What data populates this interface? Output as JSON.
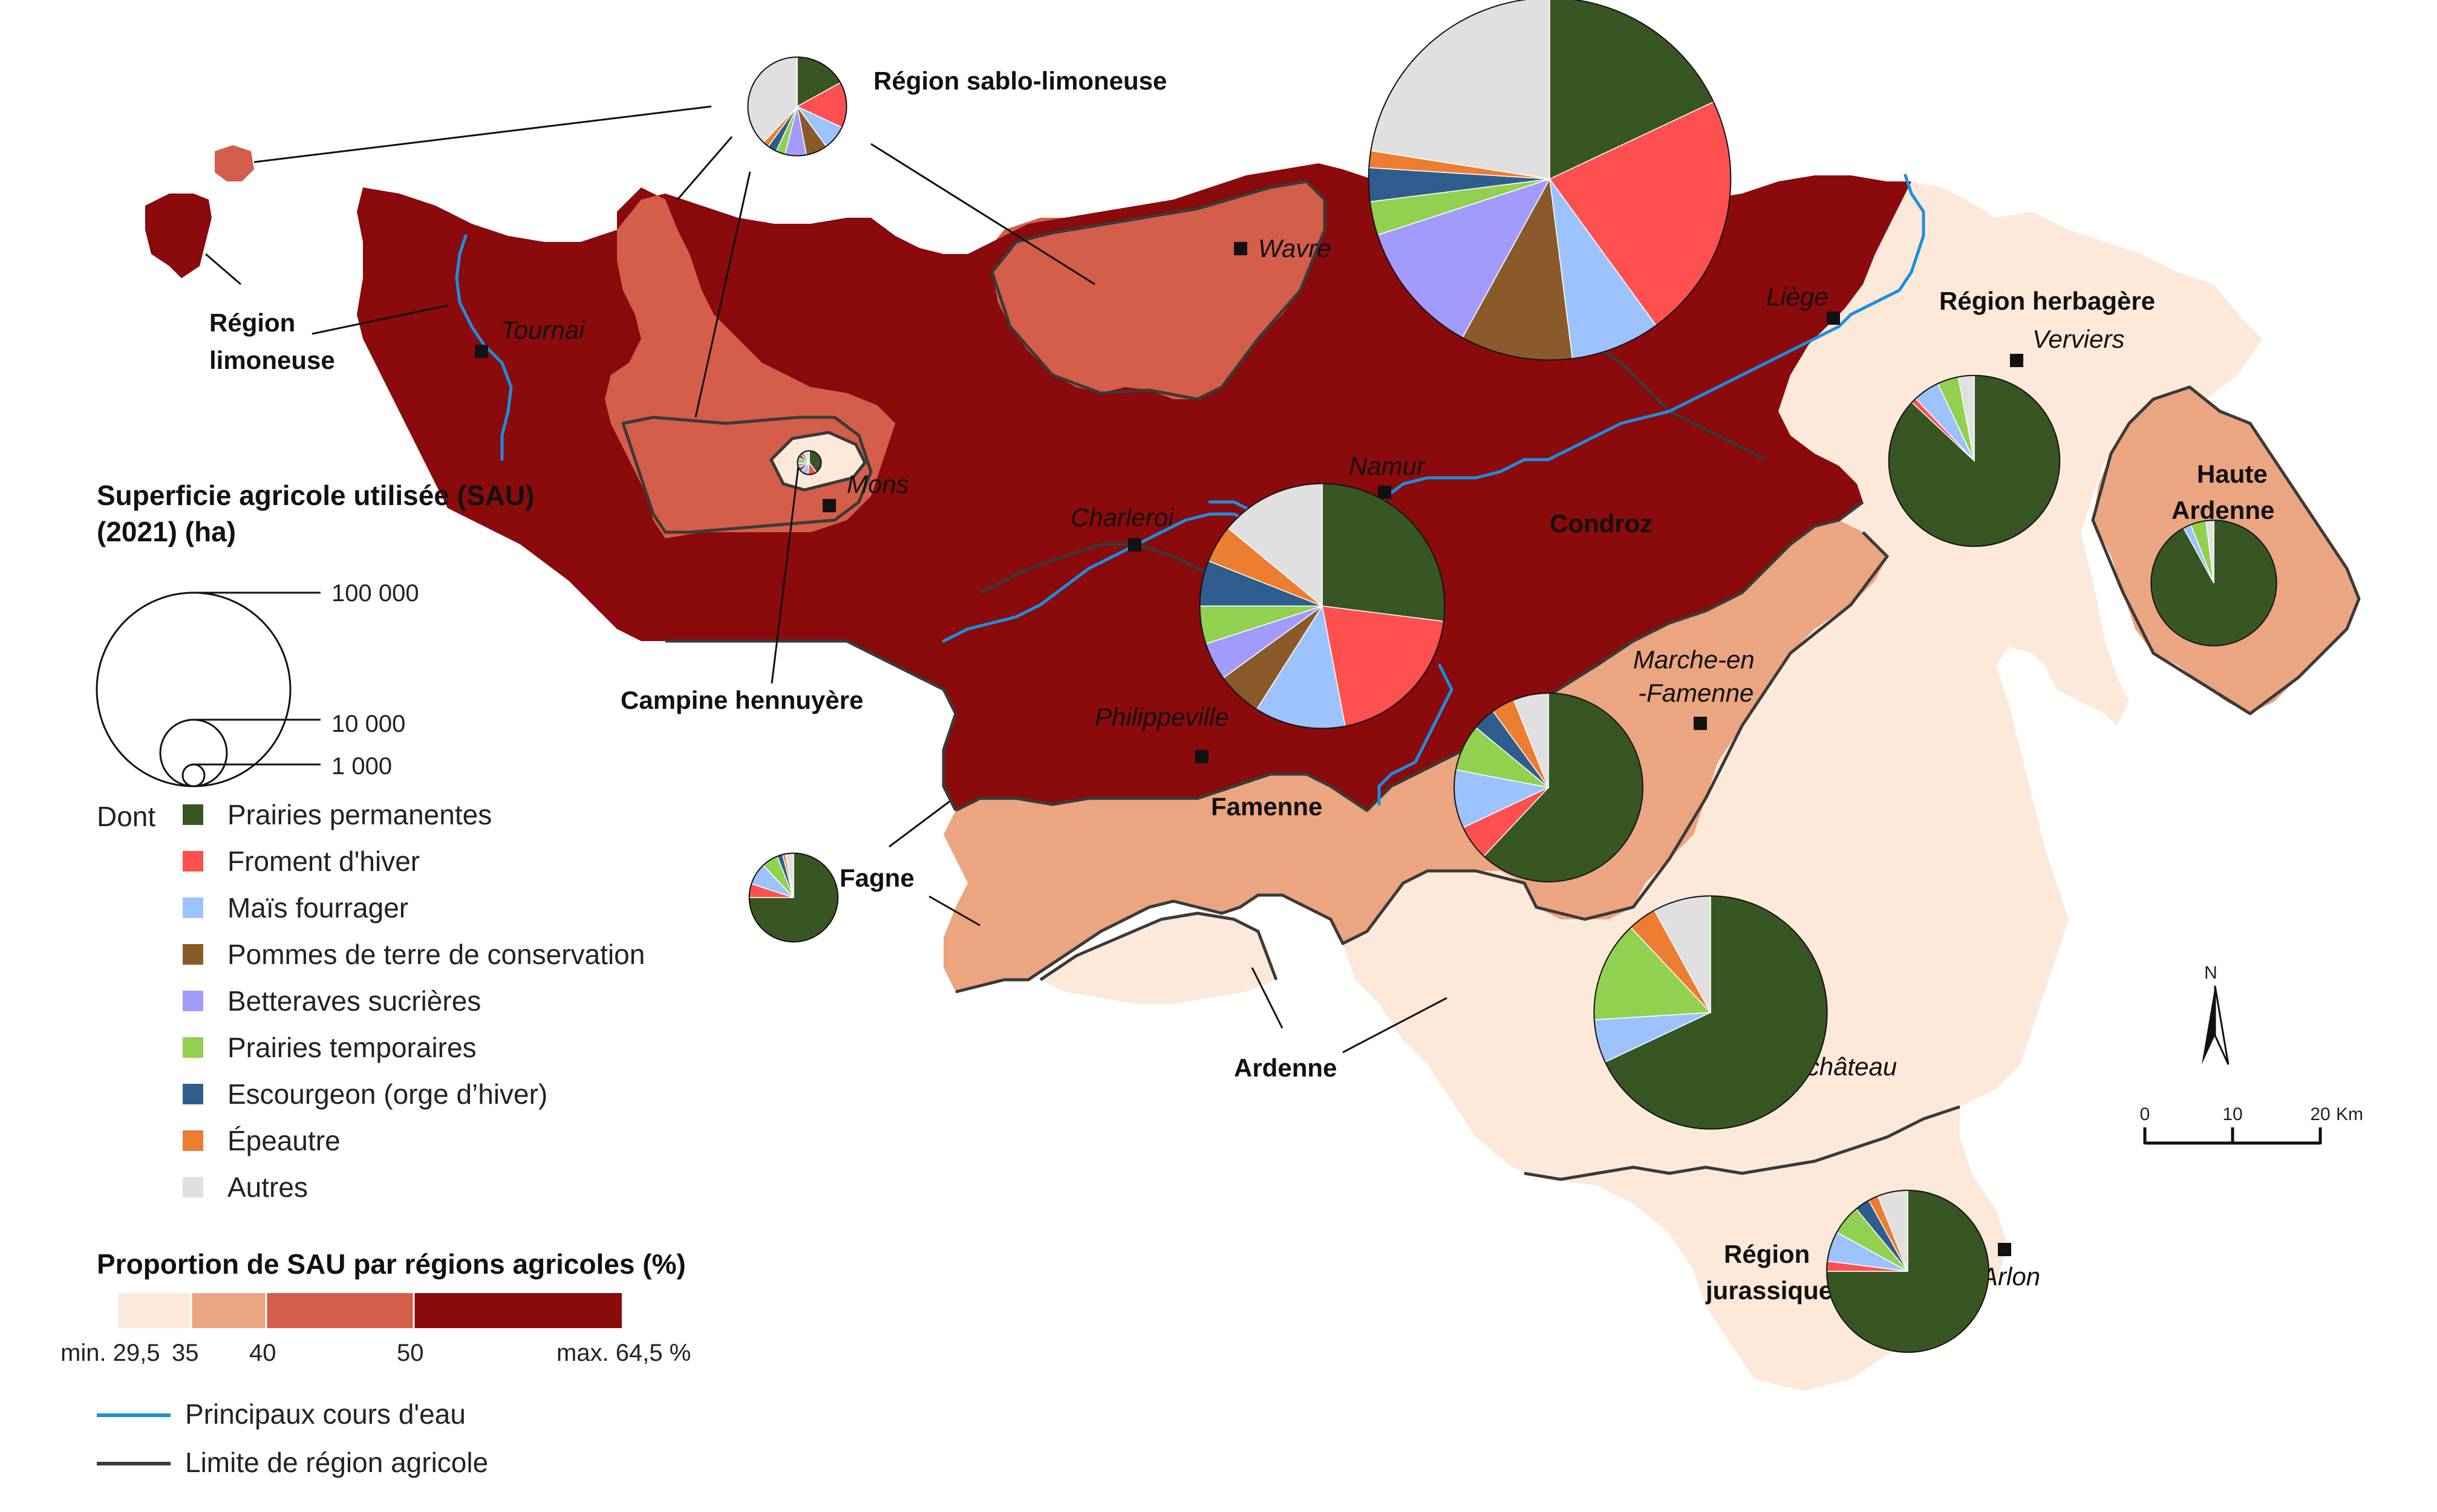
{
  "colors": {
    "c1": "#fde9d9",
    "c2": "#eba580",
    "c3": "#d45e4a",
    "c4": "#8b0a0b",
    "river": "#1a8fe0",
    "border": "#3a3a3a"
  },
  "crops": [
    {
      "name": "Prairies permanentes",
      "color": "#375623"
    },
    {
      "name": "Froment d'hiver",
      "color": "#ff5050"
    },
    {
      "name": "Maïs fourrager",
      "color": "#9dc3ff"
    },
    {
      "name": "Pommes de terre de conservation",
      "color": "#8b5a2b"
    },
    {
      "name": "Betteraves sucrières",
      "color": "#a49bff"
    },
    {
      "name": "Prairies temporaires",
      "color": "#92d050"
    },
    {
      "name": "Escourgeon (orge d’hiver)",
      "color": "#2f5e8e"
    },
    {
      "name": "Épeautre",
      "color": "#ed7d31"
    },
    {
      "name": "Autres",
      "color": "#e0e0e0"
    }
  ],
  "regions": [
    {
      "name": "Région sablo-limoneuse",
      "share_class": "40–50",
      "sau_ha": 26000,
      "shares": [
        17,
        15,
        8,
        7,
        7,
        3,
        3,
        2,
        38
      ]
    },
    {
      "name": "Région limoneuse",
      "share_class": "50–64,5",
      "sau_ha": 350000,
      "shares": [
        18,
        22,
        8,
        10,
        12,
        3,
        3,
        1.5,
        22.5
      ]
    },
    {
      "name": "Campine hennuyère",
      "share_class": "29,5–35",
      "sau_ha": 1500,
      "shares": [
        40,
        12,
        10,
        6,
        6,
        8,
        5,
        5,
        8
      ]
    },
    {
      "name": "Condroz",
      "share_class": "50–64,5",
      "sau_ha": 160000,
      "shares": [
        27,
        20,
        12,
        6,
        5,
        5,
        6,
        5,
        14
      ]
    },
    {
      "name": "Fagne",
      "share_class": "35–40",
      "sau_ha": 21000,
      "shares": [
        75,
        5,
        8,
        0,
        0,
        6,
        2,
        1,
        3
      ]
    },
    {
      "name": "Famenne",
      "share_class": "35–40",
      "sau_ha": 0,
      "shares": []
    },
    {
      "name": "Marche-en-Famenne pie",
      "share_class": "35–40",
      "sau_ha": 95000,
      "shares": [
        62,
        6,
        10,
        0,
        0,
        8,
        4,
        4,
        6
      ]
    },
    {
      "name": "Ardenne",
      "share_class": "29,5–35",
      "sau_ha": 145000,
      "shares": [
        68,
        0,
        6,
        0,
        0,
        14,
        0,
        4,
        8
      ]
    },
    {
      "name": "Région herbagère",
      "share_class": "29,5–35",
      "sau_ha": 78000,
      "shares": [
        87,
        1,
        5,
        0,
        0,
        4,
        0,
        0,
        3
      ]
    },
    {
      "name": "Haute Ardenne",
      "share_class": "35–40",
      "sau_ha": 42000,
      "shares": [
        92,
        0,
        2,
        0,
        0,
        4,
        0,
        0,
        2
      ]
    },
    {
      "name": "Région jurassique",
      "share_class": "29,5–35",
      "sau_ha": 70000,
      "shares": [
        75,
        2,
        6,
        0,
        0,
        6,
        3,
        2,
        6
      ]
    }
  ],
  "labels": {
    "sablo": "Région sablo-limoneuse",
    "limoneuse_1": "Région",
    "limoneuse_2": "limoneuse",
    "campine": "Campine hennuyère",
    "condroz": "Condroz",
    "fagne": "Fagne",
    "famenne": "Famenne",
    "ardenne": "Ardenne",
    "herbagere": "Région herbagère",
    "haute_1": "Haute",
    "haute_2": "Ardenne",
    "jura_1": "Région",
    "jura_2": "jurassique"
  },
  "cities": {
    "tournai": "Tournai",
    "wavre": "Wavre",
    "liege": "Liège",
    "verviers": "Verviers",
    "mons": "Mons",
    "charleroi": "Charleroi",
    "namur": "Namur",
    "philippeville": "Philippeville",
    "marche_1": "Marche-en",
    "marche_2": "-Famenne",
    "neufchateau": "Neufchâteau",
    "arlon": "Arlon"
  },
  "legend": {
    "sau_title_1": "Superficie agricole utilisée (SAU)",
    "sau_title_2": "(2021) (ha)",
    "size_100000": "100 000",
    "size_10000": "10 000",
    "size_1000": "1 000",
    "dont": "Dont",
    "prop_title": "Proportion de SAU par régions agricoles (%)",
    "tick_min": "min. 29,5",
    "tick_35": "35",
    "tick_40": "40",
    "tick_50": "50",
    "tick_max": "max. 64,5 %",
    "river": "Principaux cours d'eau",
    "boundary": "Limite de région agricole"
  },
  "scale": {
    "north": "N",
    "t0": "0",
    "t10": "10",
    "t20": "20",
    "unit": "Km"
  }
}
